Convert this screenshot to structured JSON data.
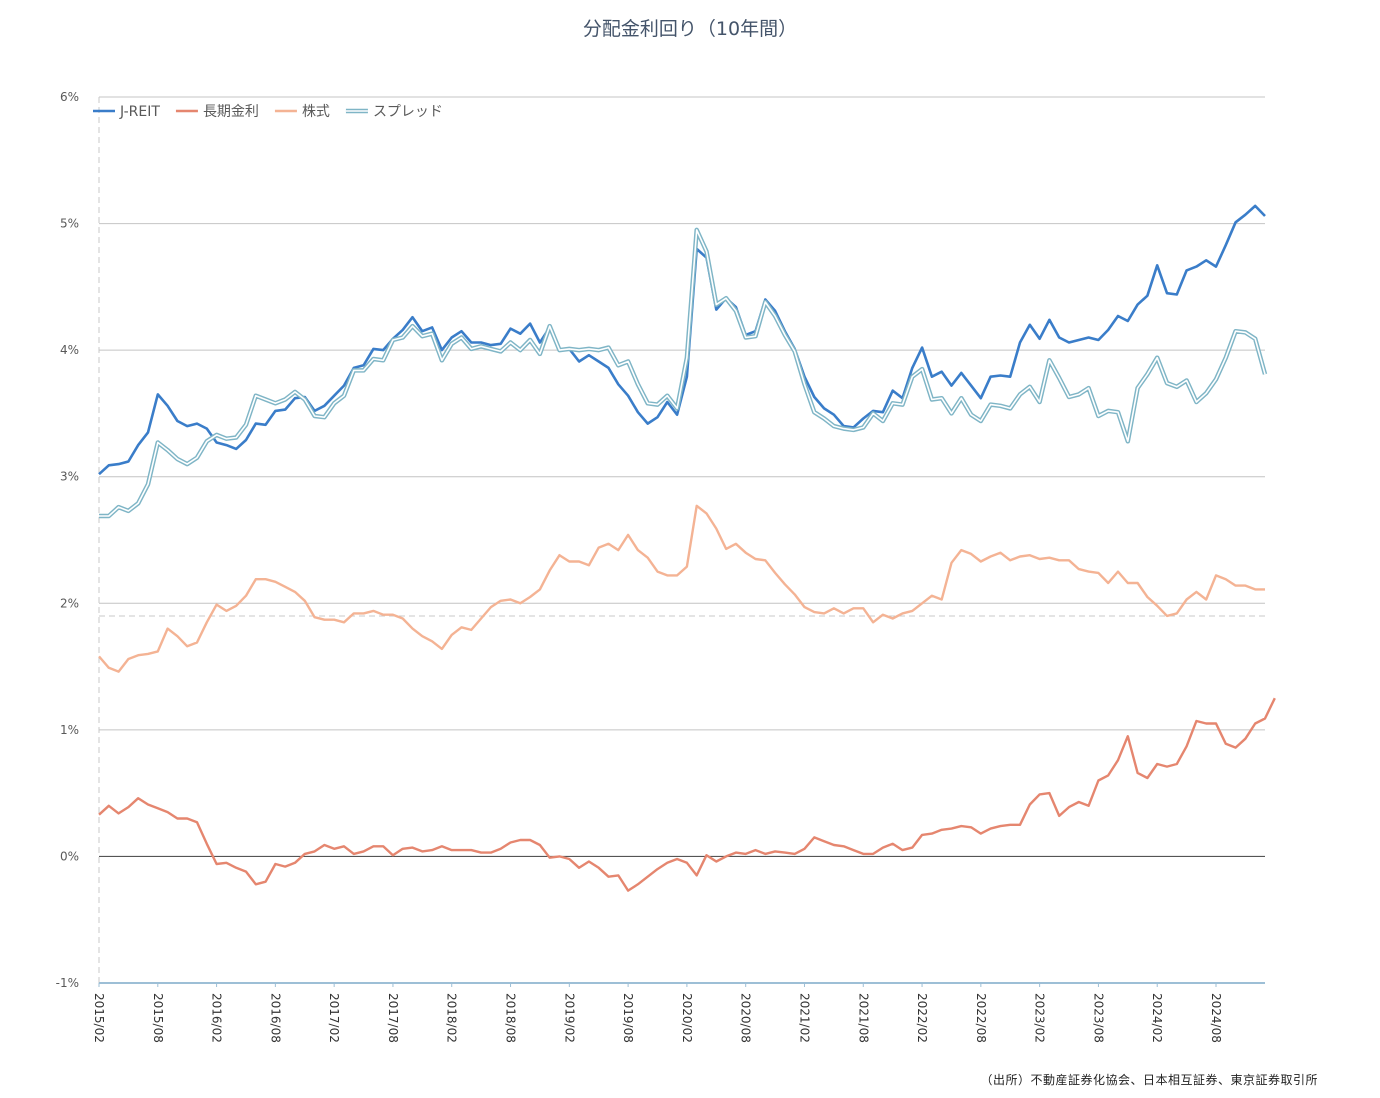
{
  "chart_data": {
    "type": "line",
    "title": "分配金利回り（10年間）",
    "source": "（出所）不動産証券化協会、日本相互証券、東京証券取引所",
    "unit": "%",
    "ylim": [
      -1,
      6
    ],
    "y_ticks": [
      {
        "value": -1,
        "label": "-1%"
      },
      {
        "value": 0,
        "label": "0%"
      },
      {
        "value": 1,
        "label": "1%"
      },
      {
        "value": 2,
        "label": "2%"
      },
      {
        "value": 3,
        "label": "3%"
      },
      {
        "value": 4,
        "label": "4%"
      },
      {
        "value": 5,
        "label": "5%"
      },
      {
        "value": 6,
        "label": "6%"
      }
    ],
    "x_start": "2015/02",
    "x_end": "2025/01",
    "x_ticks": [
      "2015/02",
      "2015/08",
      "2016/02",
      "2016/08",
      "2017/02",
      "2017/08",
      "2018/02",
      "2018/08",
      "2019/02",
      "2019/08",
      "2020/02",
      "2020/08",
      "2021/02",
      "2021/08",
      "2022/02",
      "2022/08",
      "2023/02",
      "2023/08",
      "2024/02",
      "2024/08"
    ],
    "grid": true,
    "legend_position": "top-left",
    "reference_line": 1.9,
    "series": [
      {
        "name": "J-REIT",
        "color": "#3a7dc9",
        "style": "solid",
        "values": [
          3.02,
          3.09,
          3.1,
          3.12,
          3.25,
          3.35,
          3.65,
          3.56,
          3.44,
          3.4,
          3.42,
          3.38,
          3.27,
          3.25,
          3.22,
          3.29,
          3.42,
          3.41,
          3.52,
          3.53,
          3.62,
          3.63,
          3.52,
          3.56,
          3.64,
          3.72,
          3.86,
          3.88,
          4.01,
          4.0,
          4.09,
          4.16,
          4.26,
          4.15,
          4.18,
          4.0,
          4.1,
          4.15,
          4.06,
          4.06,
          4.04,
          4.05,
          4.17,
          4.13,
          4.21,
          4.06,
          4.18,
          4.0,
          4.01,
          3.91,
          3.96,
          3.91,
          3.86,
          3.73,
          3.64,
          3.51,
          3.42,
          3.47,
          3.59,
          3.49,
          3.79,
          4.8,
          4.73,
          4.32,
          4.41,
          4.34,
          4.12,
          4.15,
          4.4,
          4.31,
          4.15,
          4.01,
          3.79,
          3.63,
          3.54,
          3.49,
          3.4,
          3.39,
          3.46,
          3.52,
          3.51,
          3.68,
          3.62,
          3.86,
          4.02,
          3.79,
          3.83,
          3.72,
          3.82,
          3.72,
          3.62,
          3.79,
          3.8,
          3.79,
          4.06,
          4.2,
          4.09,
          4.24,
          4.1,
          4.06,
          4.08,
          4.1,
          4.08,
          4.16,
          4.27,
          4.23,
          4.36,
          4.43,
          4.67,
          4.45,
          4.44,
          4.63,
          4.66,
          4.71,
          4.66,
          4.83,
          5.01,
          5.07,
          5.14,
          5.06
        ]
      },
      {
        "name": "長期金利",
        "color": "#e5866f",
        "style": "solid",
        "values": [
          0.33,
          0.4,
          0.34,
          0.39,
          0.46,
          0.41,
          0.38,
          0.35,
          0.3,
          0.3,
          0.27,
          0.1,
          -0.06,
          -0.05,
          -0.09,
          -0.12,
          -0.22,
          -0.2,
          -0.06,
          -0.08,
          -0.05,
          0.02,
          0.04,
          0.09,
          0.06,
          0.08,
          0.02,
          0.04,
          0.08,
          0.08,
          0.01,
          0.06,
          0.07,
          0.04,
          0.05,
          0.08,
          0.05,
          0.05,
          0.05,
          0.03,
          0.03,
          0.06,
          0.11,
          0.13,
          0.13,
          0.09,
          -0.01,
          0.0,
          -0.02,
          -0.09,
          -0.04,
          -0.09,
          -0.16,
          -0.15,
          -0.27,
          -0.22,
          -0.16,
          -0.1,
          -0.05,
          -0.02,
          -0.05,
          -0.15,
          0.01,
          -0.04,
          0.0,
          0.03,
          0.02,
          0.05,
          0.02,
          0.04,
          0.03,
          0.02,
          0.06,
          0.15,
          0.12,
          0.09,
          0.08,
          0.05,
          0.02,
          0.02,
          0.07,
          0.1,
          0.05,
          0.07,
          0.17,
          0.18,
          0.21,
          0.22,
          0.24,
          0.23,
          0.18,
          0.22,
          0.24,
          0.25,
          0.25,
          0.41,
          0.49,
          0.5,
          0.32,
          0.39,
          0.43,
          0.4,
          0.6,
          0.64,
          0.76,
          0.95,
          0.66,
          0.62,
          0.73,
          0.71,
          0.73,
          0.87,
          1.07,
          1.05,
          1.05,
          0.89,
          0.86,
          0.93,
          1.05,
          1.09,
          1.25
        ]
      },
      {
        "name": "株式",
        "color": "#f4b394",
        "style": "solid",
        "values": [
          1.58,
          1.49,
          1.46,
          1.56,
          1.59,
          1.6,
          1.62,
          1.8,
          1.74,
          1.66,
          1.69,
          1.85,
          1.99,
          1.94,
          1.98,
          2.06,
          2.19,
          2.19,
          2.17,
          2.13,
          2.09,
          2.02,
          1.89,
          1.87,
          1.87,
          1.85,
          1.92,
          1.92,
          1.94,
          1.91,
          1.91,
          1.88,
          1.8,
          1.74,
          1.7,
          1.64,
          1.75,
          1.81,
          1.79,
          1.88,
          1.97,
          2.02,
          2.03,
          2.0,
          2.05,
          2.11,
          2.26,
          2.38,
          2.33,
          2.33,
          2.3,
          2.44,
          2.47,
          2.42,
          2.54,
          2.42,
          2.36,
          2.25,
          2.22,
          2.22,
          2.29,
          2.77,
          2.71,
          2.59,
          2.43,
          2.47,
          2.4,
          2.35,
          2.34,
          2.24,
          2.15,
          2.07,
          1.97,
          1.93,
          1.92,
          1.96,
          1.92,
          1.96,
          1.96,
          1.85,
          1.91,
          1.88,
          1.92,
          1.94,
          2.0,
          2.06,
          2.03,
          2.32,
          2.42,
          2.39,
          2.33,
          2.37,
          2.4,
          2.34,
          2.37,
          2.38,
          2.35,
          2.36,
          2.34,
          2.34,
          2.27,
          2.25,
          2.24,
          2.16,
          2.25,
          2.16,
          2.16,
          2.05,
          1.98,
          1.9,
          1.92,
          2.03,
          2.09,
          2.03,
          2.22,
          2.19,
          2.14,
          2.14,
          2.11,
          2.11
        ]
      },
      {
        "name": "スプレッド",
        "color": "#7fb5c6",
        "style": "double",
        "values": [
          2.69,
          2.69,
          2.76,
          2.73,
          2.79,
          2.94,
          3.27,
          3.21,
          3.14,
          3.1,
          3.15,
          3.28,
          3.33,
          3.3,
          3.31,
          3.41,
          3.64,
          3.61,
          3.58,
          3.61,
          3.67,
          3.61,
          3.48,
          3.47,
          3.58,
          3.64,
          3.84,
          3.84,
          3.93,
          3.92,
          4.08,
          4.1,
          4.19,
          4.11,
          4.13,
          3.92,
          4.05,
          4.1,
          4.01,
          4.03,
          4.01,
          3.99,
          4.06,
          4.0,
          4.08,
          3.97,
          4.19,
          4.0,
          4.01,
          4.0,
          4.01,
          4.0,
          4.02,
          3.88,
          3.91,
          3.73,
          3.58,
          3.57,
          3.64,
          3.54,
          3.94,
          4.95,
          4.78,
          4.36,
          4.41,
          4.31,
          4.1,
          4.11,
          4.38,
          4.27,
          4.12,
          3.99,
          3.73,
          3.51,
          3.46,
          3.4,
          3.38,
          3.37,
          3.39,
          3.5,
          3.44,
          3.58,
          3.57,
          3.79,
          3.85,
          3.61,
          3.62,
          3.5,
          3.62,
          3.49,
          3.44,
          3.57,
          3.56,
          3.54,
          3.65,
          3.71,
          3.59,
          3.92,
          3.78,
          3.63,
          3.65,
          3.7,
          3.48,
          3.52,
          3.51,
          3.28,
          3.7,
          3.81,
          3.94,
          3.74,
          3.71,
          3.76,
          3.59,
          3.66,
          3.77,
          3.94,
          4.15,
          4.14,
          4.09,
          3.81
        ]
      }
    ]
  }
}
